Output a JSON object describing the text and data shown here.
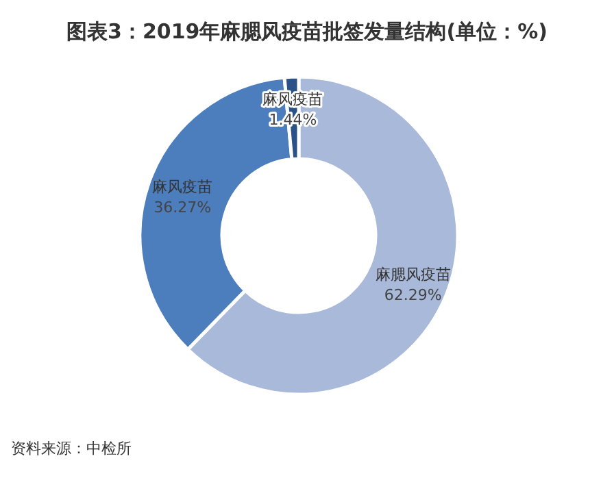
{
  "chart_data": {
    "type": "donut",
    "title": "图表3：2019年麻腮风疫苗批签发量结构(单位：%)",
    "categories": [
      "麻腮风疫苗",
      "麻风疫苗",
      "麻风疫苗"
    ],
    "values": [
      62.29,
      36.27,
      1.44
    ],
    "colors": [
      "#a9b9da",
      "#4c7dbd",
      "#2a5288"
    ],
    "value_labels": [
      "62.29%",
      "36.27%",
      "1.44%"
    ],
    "annotations": [
      "资料来源：中检所"
    ]
  }
}
